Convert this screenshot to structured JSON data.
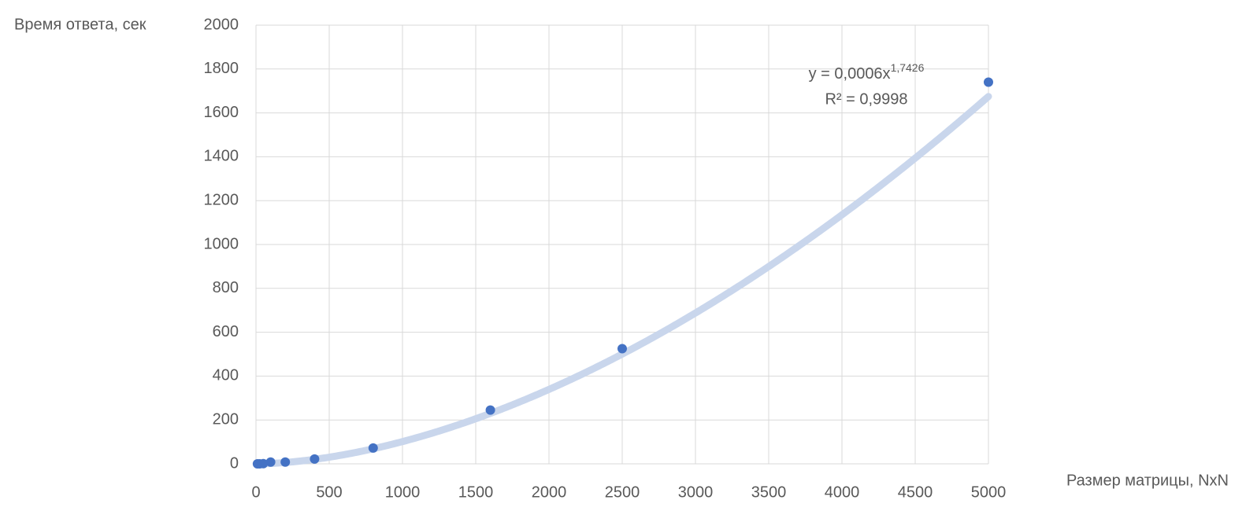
{
  "chart_data": {
    "type": "scatter",
    "y_label": "Время ответа, сек",
    "x_label": "Размер матрицы, NxN",
    "x": [
      10,
      25,
      50,
      100,
      200,
      400,
      800,
      1600,
      2500,
      5000
    ],
    "series": [
      {
        "color": "#4472c4",
        "values": [
          0,
          0,
          1,
          8,
          8,
          22,
          72,
          245,
          525,
          1740
        ]
      }
    ],
    "trendline": {
      "color": "#c9d6ec",
      "coefficient": 0.0006,
      "exponent": 1.7426,
      "equation": "y = 0,0006x",
      "equation_exponent": "1,7426",
      "r_squared": "R² = 0,9998"
    },
    "xlim": [
      0,
      5000
    ],
    "xticks": [
      0,
      500,
      1000,
      1500,
      2000,
      2500,
      3000,
      3500,
      4000,
      4500,
      5000
    ],
    "ylim": [
      0,
      2000
    ],
    "yticks": [
      0,
      200,
      400,
      600,
      800,
      1000,
      1200,
      1400,
      1600,
      1800,
      2000
    ],
    "grid": true
  }
}
